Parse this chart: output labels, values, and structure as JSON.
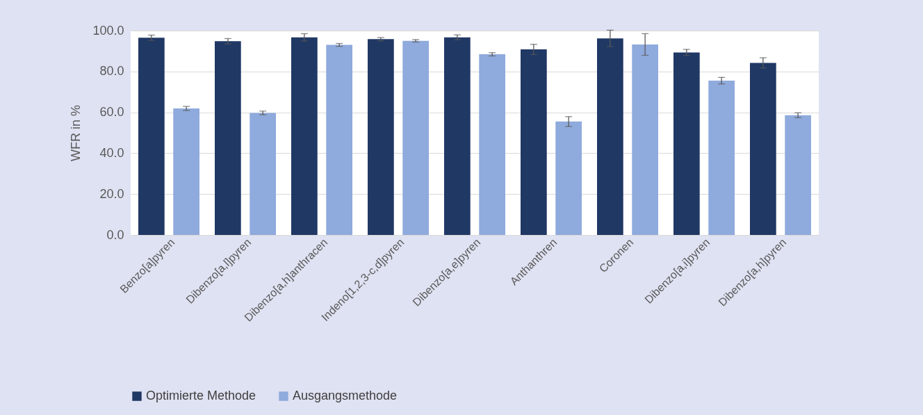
{
  "chart_data": {
    "type": "bar",
    "ylabel": "WFR in %",
    "categories": [
      "Benzo[a]pyren",
      "Dibenzo[a,l]pyren",
      "Dibenzo[a,h]anthracen",
      "Indeno[1,2,3-c,d]pyren",
      "Dibenzo[a,e]pyren",
      "Anthanthren",
      "Coronen",
      "Dibenzo[a,i]pyren",
      "Dibenzo[a,h]pyren"
    ],
    "series": [
      {
        "name": "Optimierte Methode",
        "color": "#203864",
        "values": [
          96.5,
          94.8,
          96.7,
          95.8,
          96.7,
          90.8,
          96.2,
          89.3,
          84.2
        ],
        "errors": [
          1.3,
          1.3,
          1.8,
          0.8,
          1.2,
          2.5,
          4.0,
          1.5,
          2.5
        ]
      },
      {
        "name": "Ausgangsmethode",
        "color": "#8faadc",
        "values": [
          61.9,
          59.7,
          93.0,
          95.0,
          88.4,
          55.5,
          93.2,
          75.5,
          58.6
        ],
        "errors": [
          1.0,
          0.9,
          0.7,
          0.6,
          0.8,
          2.4,
          5.3,
          1.6,
          1.2
        ]
      }
    ],
    "ylim": [
      0,
      100
    ],
    "yticks": [
      {
        "value": 0,
        "label": "0.0"
      },
      {
        "value": 20,
        "label": "20.0"
      },
      {
        "value": 40,
        "label": "40.0"
      },
      {
        "value": 60,
        "label": "60.0"
      },
      {
        "value": 80,
        "label": "80.0"
      },
      {
        "value": 100,
        "label": "100.0"
      }
    ],
    "grid": "y",
    "legend": "bottom"
  }
}
